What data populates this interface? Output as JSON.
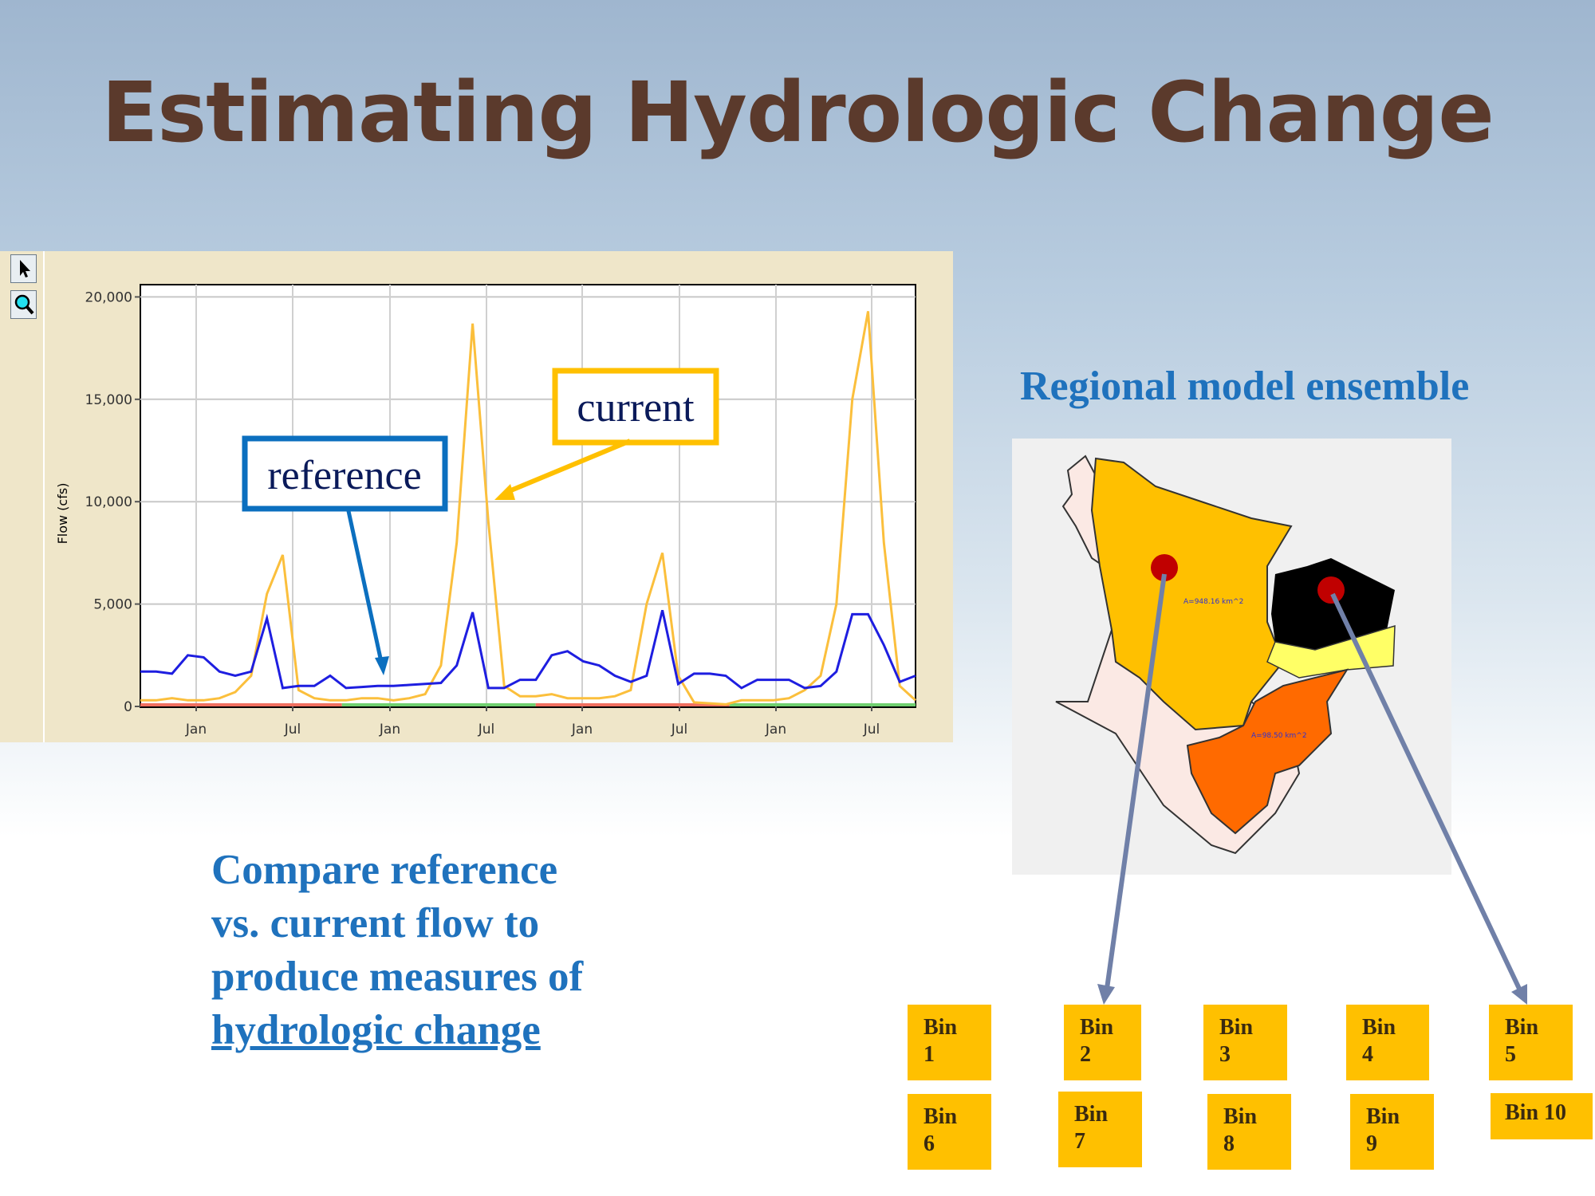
{
  "slide": {
    "title": "Estimating Hydrologic Change",
    "ensemble_title": "Regional model ensemble",
    "compare_lines": [
      "Compare reference",
      "vs. current flow to",
      "produce measures of"
    ],
    "compare_underlined": "hydrologic change"
  },
  "toolbar": {
    "icons": [
      "pointer-arrow-icon",
      "zoom-magnifier-icon"
    ]
  },
  "chart_data": {
    "type": "line",
    "ylabel": "Flow (cfs)",
    "xlabel": "",
    "ylim": [
      0,
      20600
    ],
    "y_ticks": [
      "0",
      "5,000",
      "10,000",
      "15,000",
      "20,000"
    ],
    "y_tick_values": [
      0,
      5000,
      10000,
      15000,
      20000
    ],
    "x_ticks": [
      "Jan",
      "Jul",
      "Jan",
      "Jul",
      "Jan",
      "Jul",
      "Jan",
      "Jul"
    ],
    "grid": true,
    "sampling": "monthly",
    "series": [
      {
        "name": "reference",
        "color": "#1e1ee0",
        "values": [
          1700,
          1700,
          1600,
          2500,
          2400,
          1700,
          1500,
          1700,
          4300,
          900,
          1000,
          1000,
          1500,
          900,
          950,
          1000,
          1000,
          1050,
          1100,
          1150,
          2000,
          4600,
          900,
          900,
          1300,
          1300,
          2500,
          2700,
          2200,
          2000,
          1500,
          1200,
          1500,
          4700,
          1100,
          1600,
          1600,
          1500,
          900,
          1300,
          1300,
          1300,
          900,
          1000,
          1700,
          4500,
          4500,
          3000,
          1200,
          1500
        ]
      },
      {
        "name": "current",
        "color": "#fbbf3c",
        "values": [
          300,
          300,
          400,
          300,
          300,
          400,
          700,
          1500,
          5500,
          7400,
          800,
          400,
          300,
          300,
          400,
          400,
          300,
          400,
          600,
          2000,
          8000,
          18700,
          9000,
          1000,
          500,
          500,
          600,
          400,
          400,
          400,
          500,
          800,
          5000,
          7500,
          1500,
          200,
          150,
          100,
          300,
          300,
          300,
          400,
          800,
          1500,
          5000,
          15000,
          19300,
          8000,
          1000,
          300
        ]
      }
    ],
    "baseline_segments": [
      {
        "color": "#f07060",
        "from": 0,
        "to": 0.26
      },
      {
        "color": "#70d070",
        "from": 0.26,
        "to": 0.51
      },
      {
        "color": "#f07060",
        "from": 0.51,
        "to": 0.76
      },
      {
        "color": "#70d070",
        "from": 0.76,
        "to": 1
      }
    ],
    "annotations": {
      "reference": "reference",
      "current": "current"
    },
    "annotation_colors": {
      "reference": "#0b6fbf",
      "current": "#ffc000"
    }
  },
  "map": {
    "labels": [
      "A=948.16 km^2",
      "A=98.50 km^2"
    ],
    "colors": {
      "main": "#ffc000",
      "black": "#000000",
      "yellow": "#ffff66",
      "orange": "#ff6a00",
      "dot": "#c00000"
    }
  },
  "bins": [
    "Bin 1",
    "Bin 2",
    "Bin 3",
    "Bin 4",
    "Bin 5",
    "Bin 6",
    "Bin 7",
    "Bin 8",
    "Bin 9",
    "Bin 10"
  ],
  "colors": {
    "title": "#5b3a2c",
    "blue_text": "#1f72bd",
    "bin": "#ffc000",
    "pointer_arrow": "#7080a8"
  }
}
